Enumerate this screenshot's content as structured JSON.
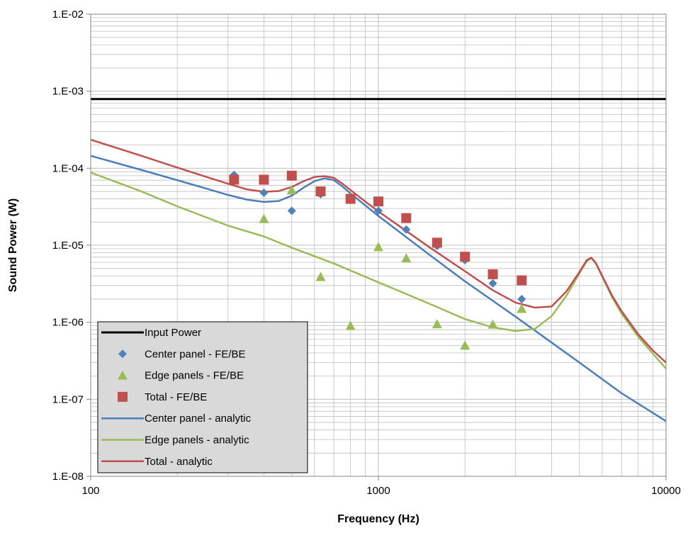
{
  "chart_data": {
    "type": "scatter",
    "title": "",
    "xlabel": "Frequency (Hz)",
    "ylabel": "Sound Power (W)",
    "x_scale": "log",
    "y_scale": "log",
    "xlim": [
      100,
      10000
    ],
    "ylim": [
      1e-08,
      0.01
    ],
    "x_ticks": [
      100,
      1000,
      10000
    ],
    "x_tick_labels": [
      "100",
      "1000",
      "10000"
    ],
    "y_ticks": [
      1e-08,
      1e-07,
      1e-06,
      1e-05,
      0.0001,
      0.001,
      0.01
    ],
    "y_tick_labels": [
      "1.E-08",
      "1.E-07",
      "1.E-06",
      "1.E-05",
      "1.E-04",
      "1.E-03",
      "1.E-02"
    ],
    "grid": true,
    "legend_position": "bottom-left",
    "series": [
      {
        "name": "Input Power",
        "kind": "line",
        "color": "#000000",
        "x": [
          100,
          10000
        ],
        "y": [
          0.00079,
          0.00079
        ]
      },
      {
        "name": "Center panel - FE/BE",
        "kind": "marker",
        "marker": "diamond",
        "color": "#4f81bd",
        "x": [
          315,
          400,
          500,
          630,
          800,
          1000,
          1250,
          1600,
          2000,
          2500,
          3150
        ],
        "y": [
          8.2e-05,
          4.8e-05,
          2.8e-05,
          4.6e-05,
          4e-05,
          2.8e-05,
          1.6e-05,
          9.8e-06,
          6.4e-06,
          3.2e-06,
          2e-06
        ]
      },
      {
        "name": "Edge panels - FE/BE",
        "kind": "marker",
        "marker": "triangle",
        "color": "#9bbb59",
        "x": [
          400,
          500,
          630,
          800,
          1000,
          1250,
          1600,
          2000,
          2500,
          3150
        ],
        "y": [
          2.2e-05,
          5.2e-05,
          3.9e-06,
          9e-07,
          9.5e-06,
          6.8e-06,
          9.5e-07,
          5e-07,
          9.4e-07,
          1.5e-06
        ]
      },
      {
        "name": "Total - FE/BE",
        "kind": "marker",
        "marker": "square",
        "color": "#c0504d",
        "x": [
          315,
          400,
          500,
          630,
          800,
          1000,
          1250,
          1600,
          2000,
          2500,
          3150
        ],
        "y": [
          7.1e-05,
          7.1e-05,
          8e-05,
          5e-05,
          4e-05,
          3.7e-05,
          2.25e-05,
          1.08e-05,
          7.1e-06,
          4.2e-06,
          3.5e-06
        ]
      },
      {
        "name": "Center panel - analytic",
        "kind": "line",
        "color": "#4a7ebb",
        "x": [
          100,
          150,
          200,
          250,
          300,
          350,
          400,
          450,
          500,
          550,
          600,
          650,
          700,
          750,
          800,
          900,
          1000,
          1500,
          2000,
          3000,
          5000,
          7000,
          10000
        ],
        "y": [
          0.000145,
          9.5e-05,
          7e-05,
          5.5e-05,
          4.5e-05,
          3.9e-05,
          3.65e-05,
          3.75e-05,
          4.4e-05,
          5.6e-05,
          6.8e-05,
          7.4e-05,
          7e-05,
          5.8e-05,
          4.7e-05,
          3.3e-05,
          2.4e-05,
          7.6e-06,
          3.4e-06,
          1.18e-06,
          3e-07,
          1.2e-07,
          5.2e-08
        ]
      },
      {
        "name": "Edge panels - analytic",
        "kind": "line",
        "color": "#9bbb59",
        "x": [
          100,
          150,
          200,
          300,
          400,
          500,
          700,
          1000,
          1500,
          2000,
          2500,
          3000,
          3500,
          4000,
          4500,
          5000,
          5300,
          5500,
          5700,
          6000,
          6500,
          7000,
          8000,
          9000,
          10000
        ],
        "y": [
          8.8e-05,
          5e-05,
          3.2e-05,
          1.8e-05,
          1.3e-05,
          9.3e-06,
          5.8e-06,
          3.3e-06,
          1.75e-06,
          1.1e-06,
          8.6e-07,
          7.7e-07,
          8.2e-07,
          1.2e-06,
          2.2e-06,
          4.3e-06,
          6.2e-06,
          6.8e-06,
          5.8e-06,
          3.9e-06,
          2.1e-06,
          1.3e-06,
          6.5e-07,
          3.9e-07,
          2.5e-07
        ]
      },
      {
        "name": "Total - analytic",
        "kind": "line",
        "color": "#c0504d",
        "x": [
          100,
          150,
          200,
          250,
          300,
          350,
          400,
          450,
          500,
          550,
          600,
          650,
          700,
          750,
          800,
          900,
          1000,
          1500,
          2000,
          2500,
          3000,
          3500,
          4000,
          4500,
          5000,
          5300,
          5500,
          5700,
          6000,
          6500,
          7000,
          8000,
          9000,
          10000
        ],
        "y": [
          0.000235,
          0.000145,
          0.000102,
          7.8e-05,
          6.3e-05,
          5.3e-05,
          4.95e-05,
          5.05e-05,
          5.7e-05,
          6.8e-05,
          7.7e-05,
          7.9e-05,
          7.5e-05,
          6.3e-05,
          5.2e-05,
          3.7e-05,
          2.75e-05,
          9.5e-06,
          4.6e-06,
          2.6e-06,
          1.8e-06,
          1.55e-06,
          1.6e-06,
          2.5e-06,
          4.5e-06,
          6.4e-06,
          6.9e-06,
          5.9e-06,
          4e-06,
          2.2e-06,
          1.4e-06,
          7e-07,
          4.3e-07,
          3e-07
        ]
      }
    ]
  }
}
